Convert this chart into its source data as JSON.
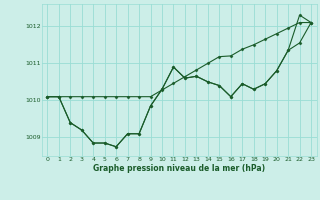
{
  "xlabel": "Graphe pression niveau de la mer (hPa)",
  "xlim": [
    -0.5,
    23.5
  ],
  "ylim": [
    1008.5,
    1012.6
  ],
  "yticks": [
    1009,
    1010,
    1011,
    1012
  ],
  "xticks": [
    0,
    1,
    2,
    3,
    4,
    5,
    6,
    7,
    8,
    9,
    10,
    11,
    12,
    13,
    14,
    15,
    16,
    17,
    18,
    19,
    20,
    21,
    22,
    23
  ],
  "background_color": "#cceee8",
  "grid_color": "#99ddd4",
  "line_color": "#1a5c2a",
  "series": [
    [
      1010.1,
      1010.1,
      1009.4,
      1009.2,
      1008.85,
      1008.85,
      1008.75,
      1009.1,
      1009.1,
      1009.85,
      1010.3,
      1010.9,
      1010.6,
      1010.65,
      1010.5,
      1010.4,
      1010.1,
      1010.45,
      1010.3,
      1010.45,
      1010.8,
      1011.35,
      1011.55,
      1012.1
    ],
    [
      1010.1,
      1010.1,
      1009.4,
      1009.2,
      1008.85,
      1008.85,
      1008.75,
      1009.1,
      1009.1,
      1009.85,
      1010.3,
      1010.9,
      1010.6,
      1010.65,
      1010.5,
      1010.4,
      1010.1,
      1010.45,
      1010.3,
      1010.45,
      1010.8,
      1011.35,
      1012.3,
      1012.1
    ],
    [
      1010.1,
      1010.1,
      1010.1,
      1010.1,
      1010.1,
      1010.1,
      1010.1,
      1010.1,
      1010.1,
      1010.1,
      1010.28,
      1010.46,
      1010.64,
      1010.82,
      1011.0,
      1011.18,
      1011.2,
      1011.38,
      1011.5,
      1011.65,
      1011.8,
      1011.95,
      1012.1,
      1012.1
    ]
  ]
}
